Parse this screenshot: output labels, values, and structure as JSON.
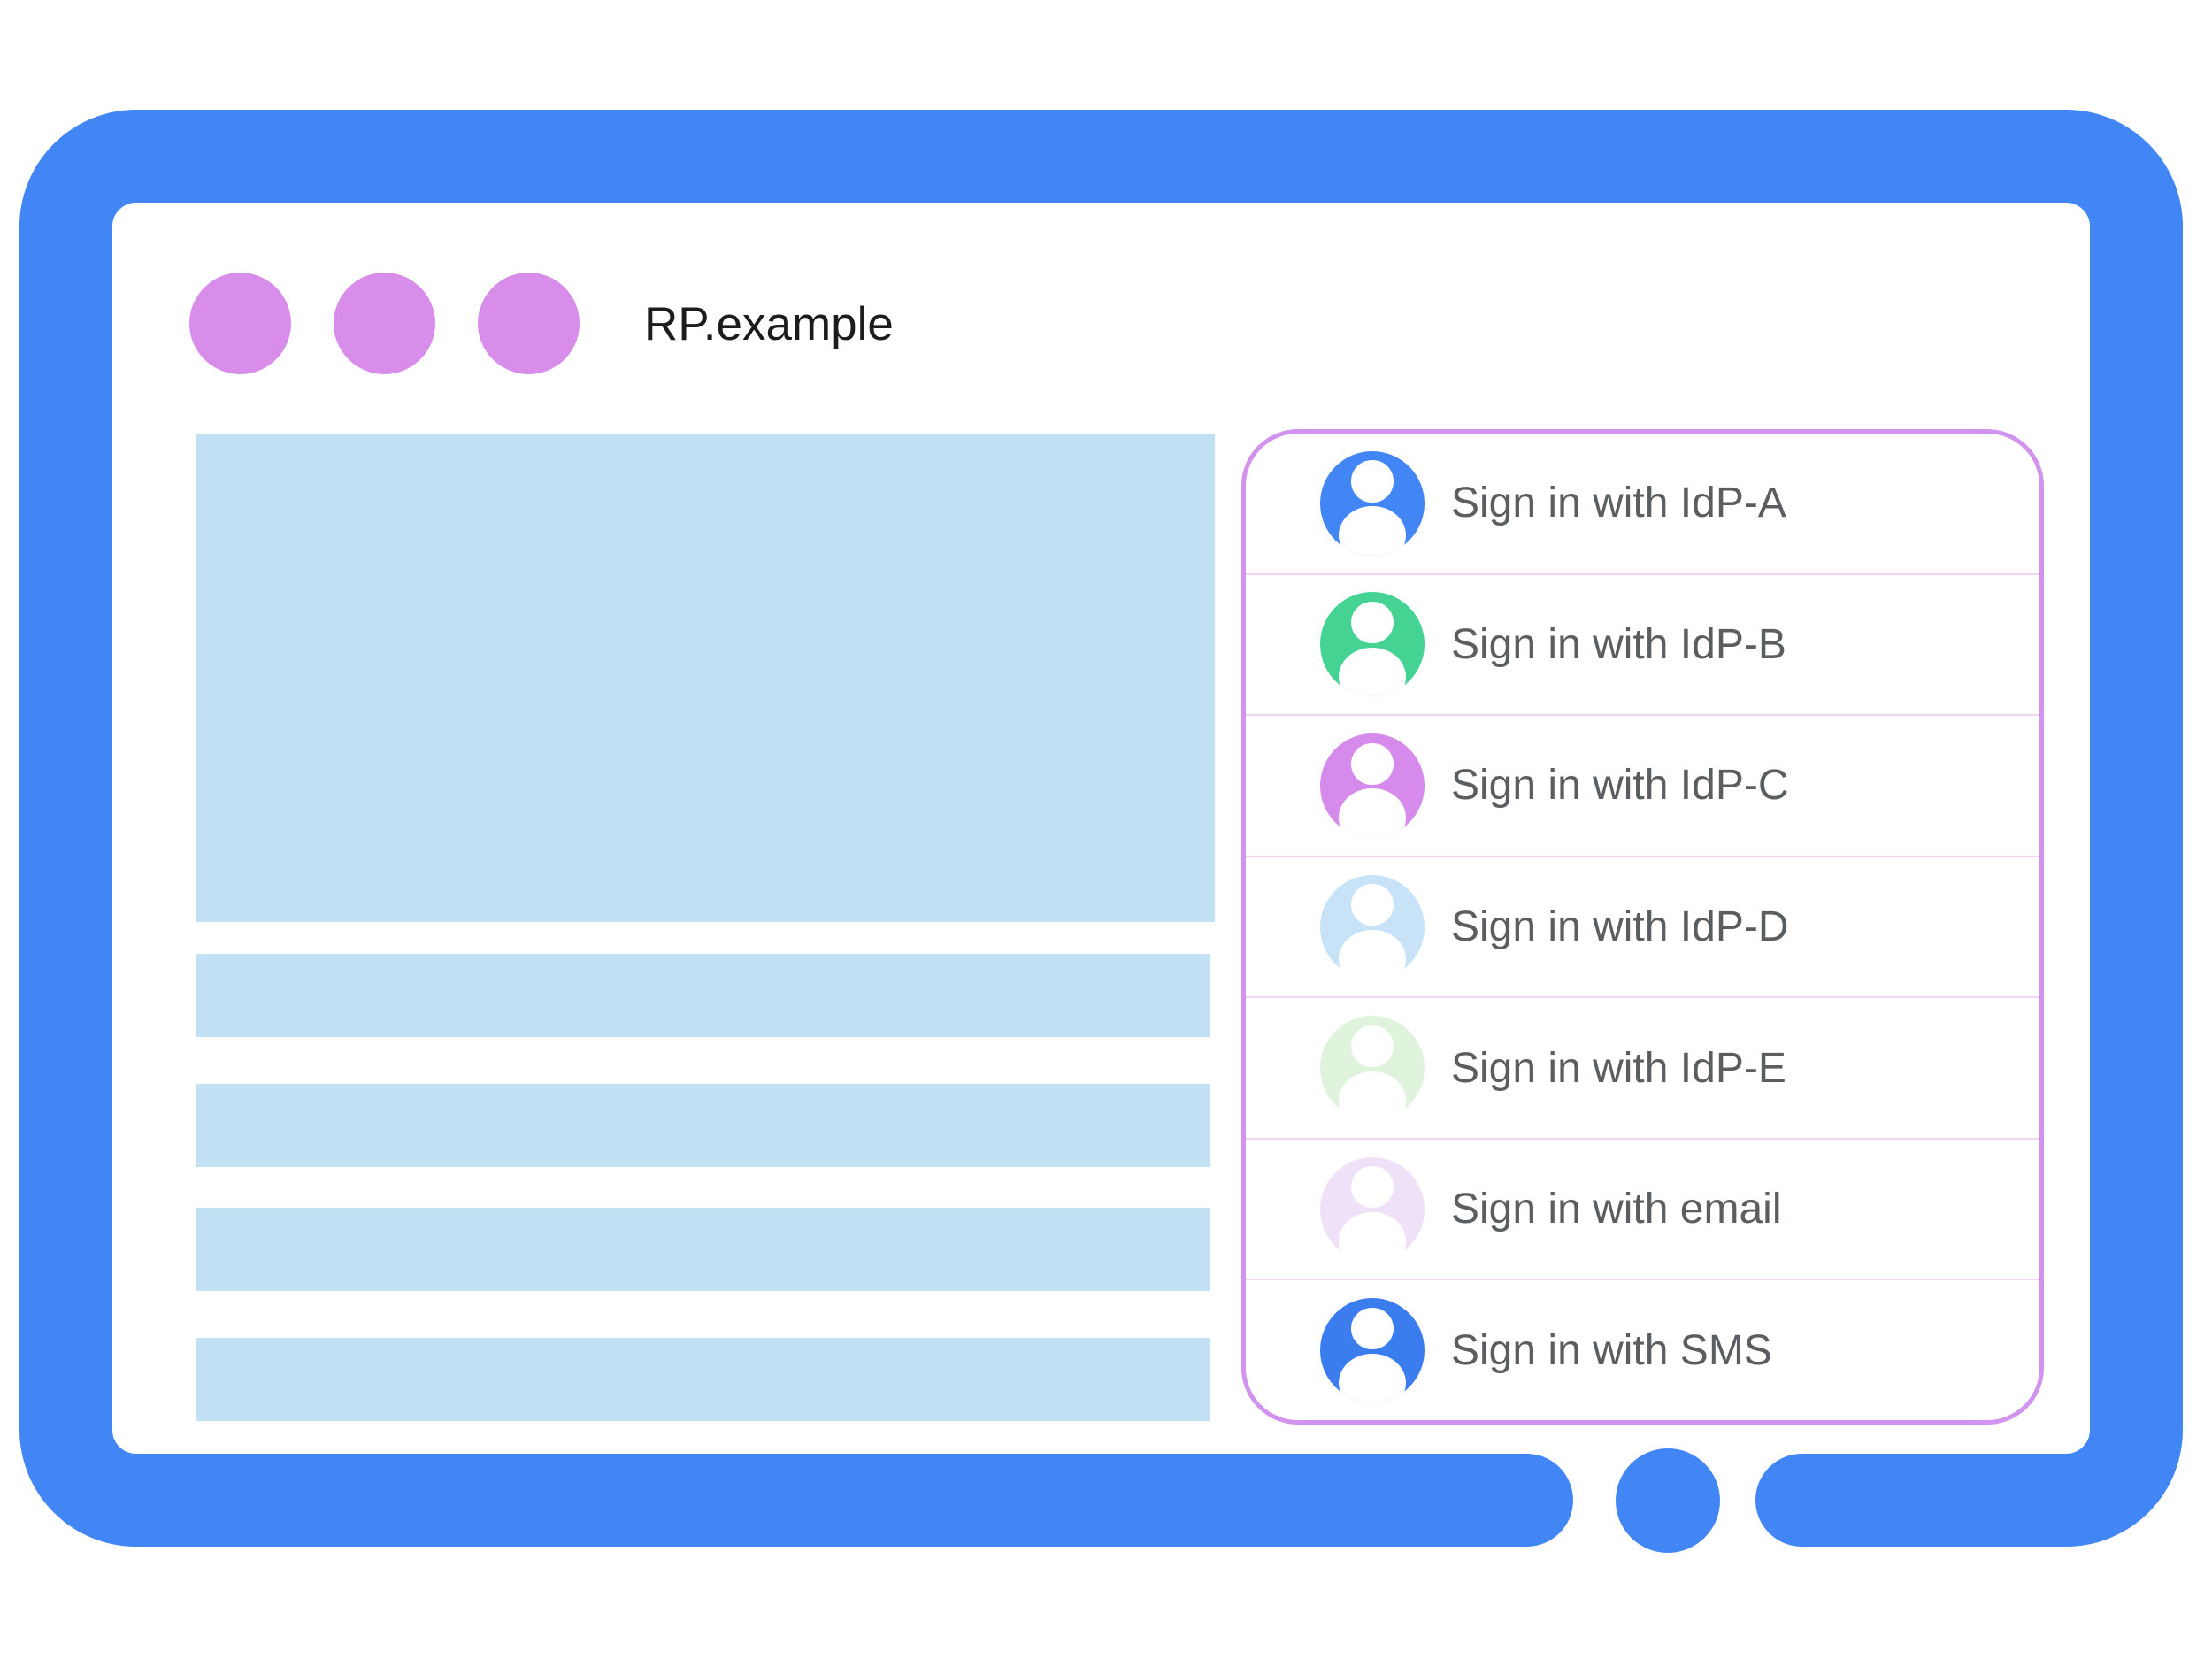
{
  "browser_window": {
    "title": "RP.example"
  },
  "colors": {
    "frame_blue": "#4285F4",
    "window_dot_purple": "#D88DEA",
    "content_placeholder_blue": "#C3E1F5",
    "panel_border_purple": "#D193EE",
    "row_divider_pink": "#F2D3F5",
    "option_label_gray": "#5B5E61",
    "title_text": "#1C1C1E"
  },
  "signin_panel": {
    "options": [
      {
        "label": "Sign in with IdP-A",
        "avatar_color": "#4285F4"
      },
      {
        "label": "Sign in with IdP-B",
        "avatar_color": "#45D394"
      },
      {
        "label": "Sign in with IdP-C",
        "avatar_color": "#D68BEC"
      },
      {
        "label": "Sign in with IdP-D",
        "avatar_color": "#C8E3F7"
      },
      {
        "label": "Sign in with IdP-E",
        "avatar_color": "#DFF3DD"
      },
      {
        "label": "Sign in with email",
        "avatar_color": "#EFE1F8"
      },
      {
        "label": "Sign in with SMS",
        "avatar_color": "#3B7CEF"
      }
    ]
  }
}
